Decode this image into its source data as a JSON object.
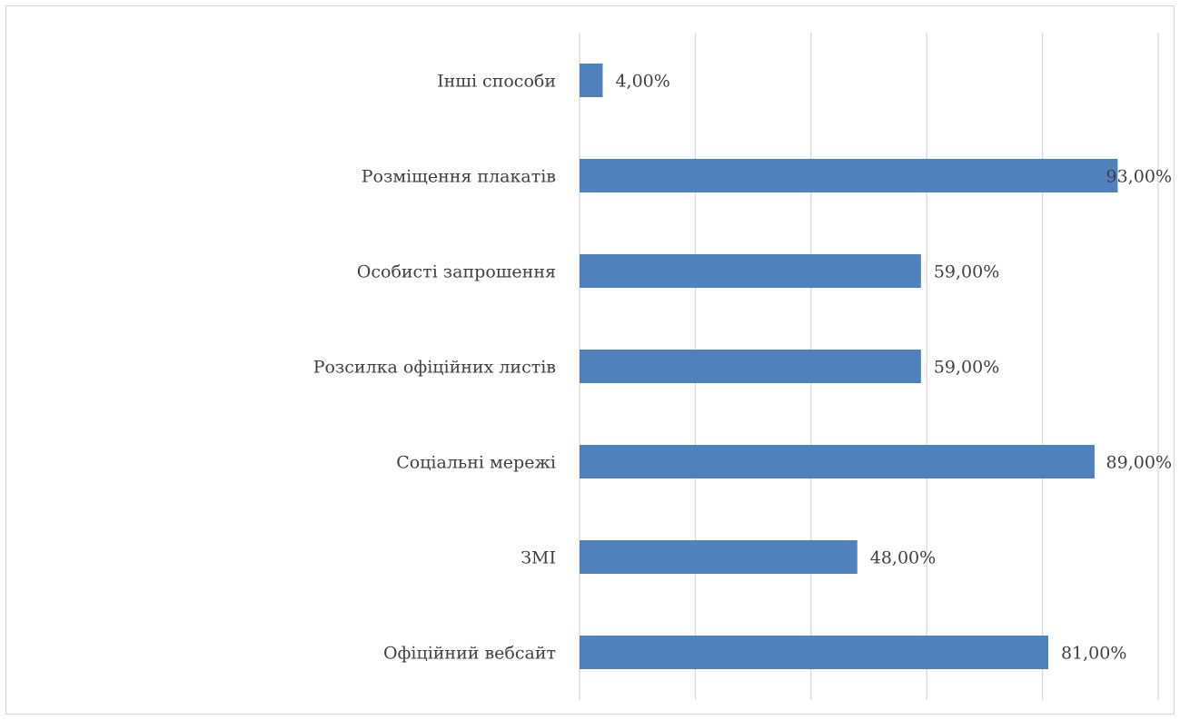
{
  "chart_data": {
    "type": "bar",
    "orientation": "horizontal",
    "title": "",
    "xlabel": "",
    "ylabel": "",
    "categories": [
      "Інші способи",
      "Розміщення плакатів",
      "Особисті запрошення",
      "Розсилка офіційних листів",
      "Соціальні мережі",
      "ЗМІ",
      "Офіційний вебсайт"
    ],
    "values": [
      4,
      93,
      59,
      59,
      89,
      48,
      81
    ],
    "value_labels": [
      "4,00%",
      "93,00%",
      "59,00%",
      "59,00%",
      "89,00%",
      "48,00%",
      "81,00%"
    ],
    "xlim": [
      0,
      100
    ],
    "x_gridlines": [
      0,
      20,
      40,
      60,
      80,
      100
    ],
    "x_tick_labels_shown": false,
    "legend": "none",
    "bar_color": "#4f81bd",
    "grid_color": "#d9d9d9",
    "text_color": "#404040"
  }
}
